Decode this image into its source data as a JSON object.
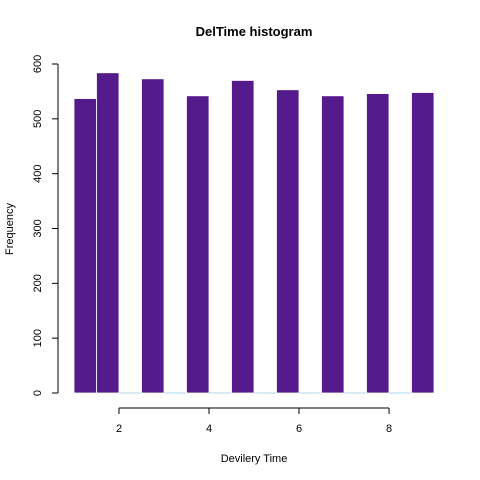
{
  "chart_data": {
    "type": "bar",
    "title": "DelTime histogram",
    "xlabel": "Devilery Time",
    "ylabel": "Frequency",
    "bins": [
      {
        "x0": 1.0,
        "x1": 1.5,
        "value": 537
      },
      {
        "x0": 1.5,
        "x1": 2.0,
        "value": 584
      },
      {
        "x0": 2.0,
        "x1": 2.5,
        "value": 0
      },
      {
        "x0": 2.5,
        "x1": 3.0,
        "value": 573
      },
      {
        "x0": 3.0,
        "x1": 3.5,
        "value": 0
      },
      {
        "x0": 3.5,
        "x1": 4.0,
        "value": 542
      },
      {
        "x0": 4.0,
        "x1": 4.5,
        "value": 0
      },
      {
        "x0": 4.5,
        "x1": 5.0,
        "value": 570
      },
      {
        "x0": 5.0,
        "x1": 5.5,
        "value": 0
      },
      {
        "x0": 5.5,
        "x1": 6.0,
        "value": 553
      },
      {
        "x0": 6.0,
        "x1": 6.5,
        "value": 0
      },
      {
        "x0": 6.5,
        "x1": 7.0,
        "value": 542
      },
      {
        "x0": 7.0,
        "x1": 7.5,
        "value": 0
      },
      {
        "x0": 7.5,
        "x1": 8.0,
        "value": 546
      },
      {
        "x0": 8.0,
        "x1": 8.5,
        "value": 0
      },
      {
        "x0": 8.5,
        "x1": 9.0,
        "value": 548
      }
    ],
    "xlim": [
      1,
      9
    ],
    "ylim": [
      0,
      600
    ],
    "xticks": [
      2,
      4,
      6,
      8
    ],
    "xtick_labels": [
      "2",
      "4",
      "6",
      "8"
    ],
    "yticks": [
      0,
      100,
      200,
      300,
      400,
      500,
      600
    ],
    "ytick_labels": [
      "0",
      "100",
      "200",
      "300",
      "400",
      "500",
      "600"
    ],
    "grid": false,
    "bar_color": "#551a8b",
    "bar_border_color": "#ffffff",
    "empty_bin_color": "#add8e6"
  }
}
